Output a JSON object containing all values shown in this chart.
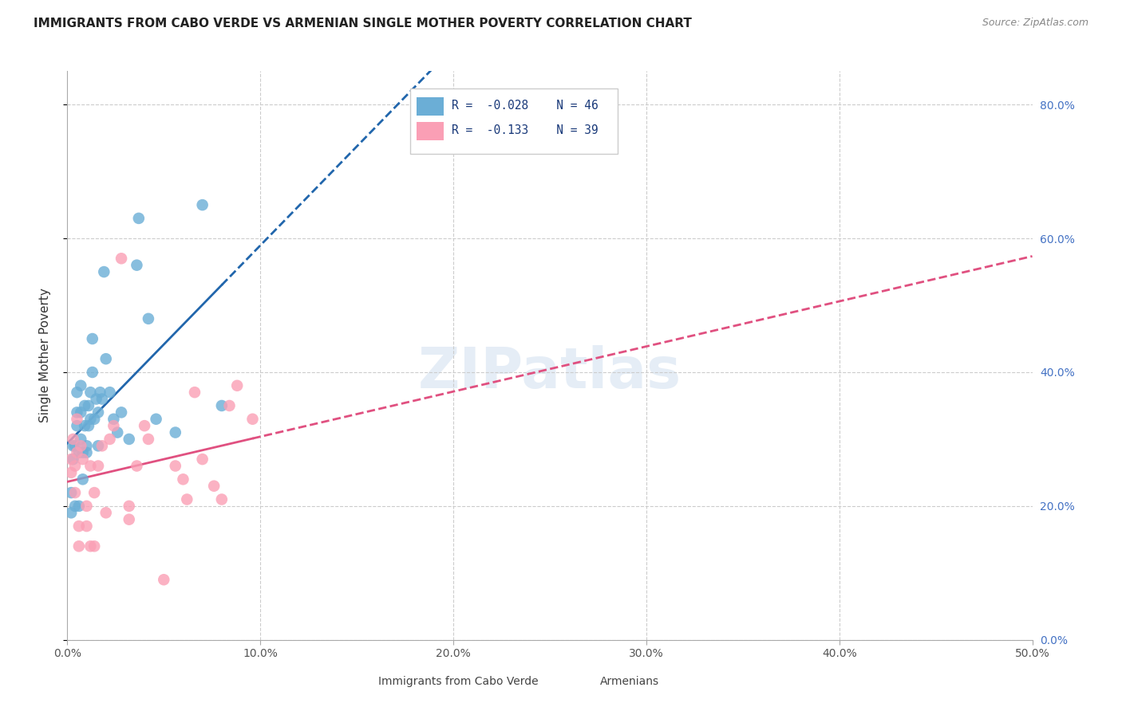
{
  "title": "IMMIGRANTS FROM CABO VERDE VS ARMENIAN SINGLE MOTHER POVERTY CORRELATION CHART",
  "source": "Source: ZipAtlas.com",
  "ylabel": "Single Mother Poverty",
  "xmin": 0.0,
  "xmax": 0.5,
  "ymin": 0.0,
  "ymax": 0.85,
  "legend_r1": "R =  -0.028",
  "legend_n1": "N = 46",
  "legend_r2": "R =  -0.133",
  "legend_n2": "N = 39",
  "cabo_verde_color": "#6baed6",
  "armenian_color": "#fa9fb5",
  "cabo_verde_line_color": "#2166ac",
  "armenian_line_color": "#e05080",
  "background_color": "#ffffff",
  "grid_color": "#cccccc",
  "cabo_verde_x": [
    0.002,
    0.002,
    0.003,
    0.003,
    0.004,
    0.004,
    0.005,
    0.005,
    0.005,
    0.006,
    0.006,
    0.007,
    0.007,
    0.007,
    0.008,
    0.008,
    0.009,
    0.009,
    0.01,
    0.01,
    0.011,
    0.011,
    0.012,
    0.012,
    0.013,
    0.013,
    0.014,
    0.015,
    0.016,
    0.016,
    0.017,
    0.018,
    0.019,
    0.02,
    0.022,
    0.024,
    0.026,
    0.028,
    0.032,
    0.036,
    0.037,
    0.042,
    0.046,
    0.056,
    0.07,
    0.08
  ],
  "cabo_verde_y": [
    0.19,
    0.22,
    0.27,
    0.29,
    0.2,
    0.29,
    0.32,
    0.34,
    0.37,
    0.2,
    0.28,
    0.3,
    0.34,
    0.38,
    0.24,
    0.28,
    0.32,
    0.35,
    0.28,
    0.29,
    0.32,
    0.35,
    0.33,
    0.37,
    0.4,
    0.45,
    0.33,
    0.36,
    0.29,
    0.34,
    0.37,
    0.36,
    0.55,
    0.42,
    0.37,
    0.33,
    0.31,
    0.34,
    0.3,
    0.56,
    0.63,
    0.48,
    0.33,
    0.31,
    0.65,
    0.35
  ],
  "armenian_x": [
    0.002,
    0.002,
    0.003,
    0.004,
    0.004,
    0.005,
    0.005,
    0.006,
    0.006,
    0.007,
    0.008,
    0.01,
    0.01,
    0.012,
    0.012,
    0.014,
    0.014,
    0.016,
    0.018,
    0.02,
    0.022,
    0.024,
    0.028,
    0.032,
    0.032,
    0.036,
    0.04,
    0.042,
    0.05,
    0.056,
    0.06,
    0.062,
    0.066,
    0.07,
    0.076,
    0.08,
    0.084,
    0.088,
    0.096
  ],
  "armenian_y": [
    0.25,
    0.27,
    0.3,
    0.22,
    0.26,
    0.28,
    0.33,
    0.14,
    0.17,
    0.29,
    0.27,
    0.17,
    0.2,
    0.14,
    0.26,
    0.14,
    0.22,
    0.26,
    0.29,
    0.19,
    0.3,
    0.32,
    0.57,
    0.18,
    0.2,
    0.26,
    0.32,
    0.3,
    0.09,
    0.26,
    0.24,
    0.21,
    0.37,
    0.27,
    0.23,
    0.21,
    0.35,
    0.38,
    0.33
  ],
  "xtick_vals": [
    0.0,
    0.1,
    0.2,
    0.3,
    0.4,
    0.5
  ],
  "xtick_labels": [
    "0.0%",
    "10.0%",
    "20.0%",
    "30.0%",
    "40.0%",
    "50.0%"
  ],
  "ytick_vals": [
    0.0,
    0.2,
    0.4,
    0.6,
    0.8
  ],
  "ytick_labels": [
    "0.0%",
    "20.0%",
    "40.0%",
    "60.0%",
    "80.0%"
  ]
}
